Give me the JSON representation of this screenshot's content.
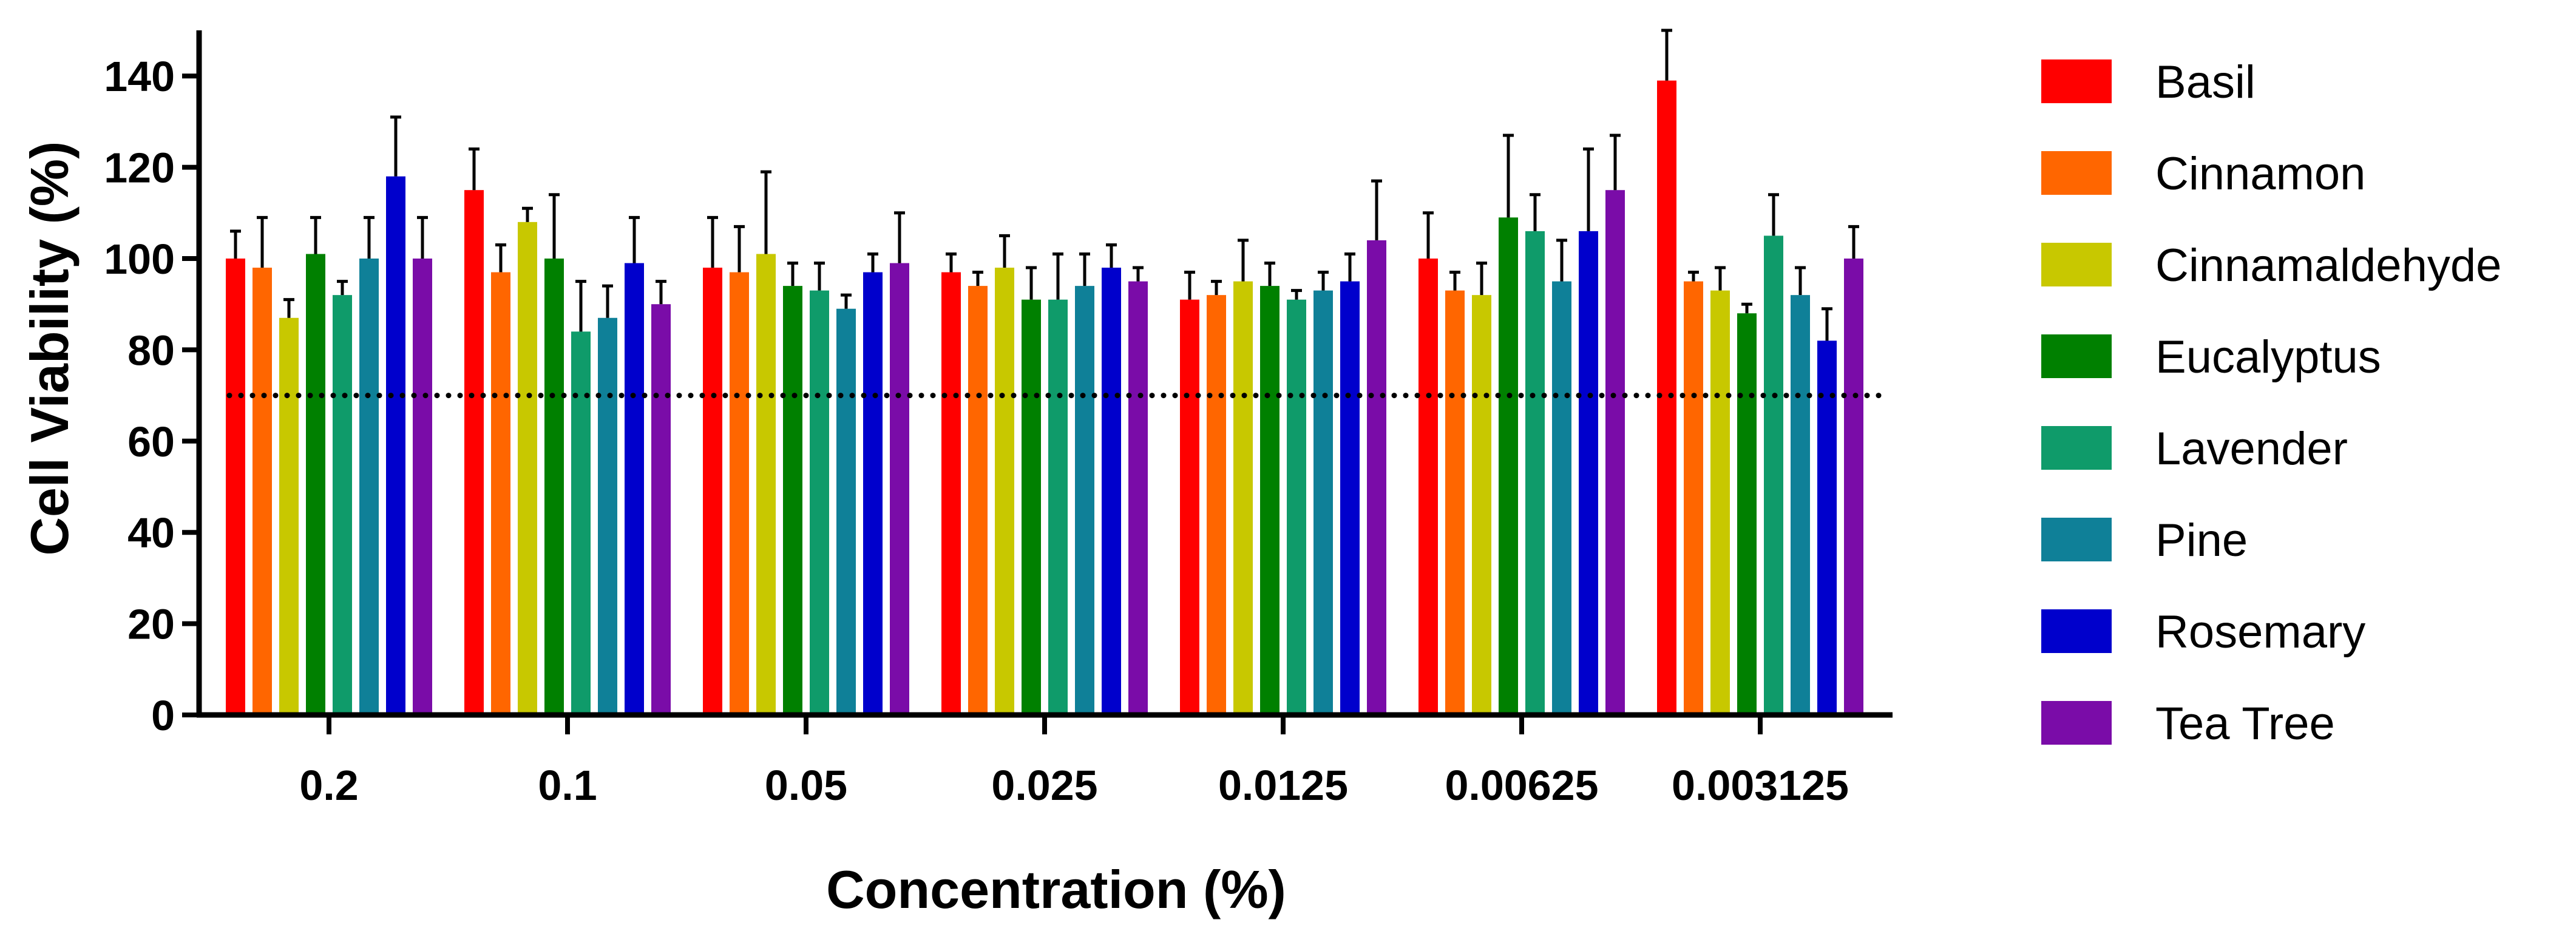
{
  "chart_data": {
    "type": "bar",
    "title": "",
    "xlabel": "Concentration (%)",
    "ylabel": "Cell Viability (%)",
    "ylim": [
      0,
      150
    ],
    "yticks": [
      0,
      20,
      40,
      60,
      80,
      100,
      120,
      140
    ],
    "categories": [
      "0.2",
      "0.1",
      "0.05",
      "0.025",
      "0.0125",
      "0.00625",
      "0.003125"
    ],
    "threshold": 70,
    "legend_position": "right",
    "series": [
      {
        "name": "Basil",
        "color": "#ff0000",
        "values": [
          100,
          115,
          98,
          97,
          91,
          100,
          139
        ],
        "errors": [
          6,
          9,
          11,
          4,
          6,
          10,
          11
        ]
      },
      {
        "name": "Cinnamon",
        "color": "#ff6600",
        "values": [
          98,
          97,
          97,
          94,
          92,
          93,
          95
        ],
        "errors": [
          11,
          6,
          10,
          3,
          3,
          4,
          2
        ]
      },
      {
        "name": "Cinnamaldehyde",
        "color": "#c8c800",
        "values": [
          87,
          108,
          101,
          98,
          95,
          92,
          93
        ],
        "errors": [
          4,
          3,
          18,
          7,
          9,
          7,
          5
        ]
      },
      {
        "name": "Eucalyptus",
        "color": "#008000",
        "values": [
          101,
          100,
          94,
          91,
          94,
          109,
          88
        ],
        "errors": [
          8,
          14,
          5,
          7,
          5,
          18,
          2
        ]
      },
      {
        "name": "Lavender",
        "color": "#0f9b6a",
        "values": [
          92,
          84,
          93,
          91,
          91,
          106,
          105
        ],
        "errors": [
          3,
          11,
          6,
          10,
          2,
          8,
          9
        ]
      },
      {
        "name": "Pine",
        "color": "#0f8098",
        "values": [
          100,
          87,
          89,
          94,
          93,
          95,
          92
        ],
        "errors": [
          9,
          7,
          3,
          7,
          4,
          9,
          6
        ]
      },
      {
        "name": "Rosemary",
        "color": "#0000cc",
        "values": [
          118,
          99,
          97,
          98,
          95,
          106,
          82
        ],
        "errors": [
          13,
          10,
          4,
          5,
          6,
          18,
          7
        ]
      },
      {
        "name": "Tea Tree",
        "color": "#7a0ca8",
        "values": [
          100,
          90,
          99,
          95,
          104,
          115,
          100
        ],
        "errors": [
          9,
          5,
          11,
          3,
          13,
          12,
          7
        ]
      }
    ]
  }
}
